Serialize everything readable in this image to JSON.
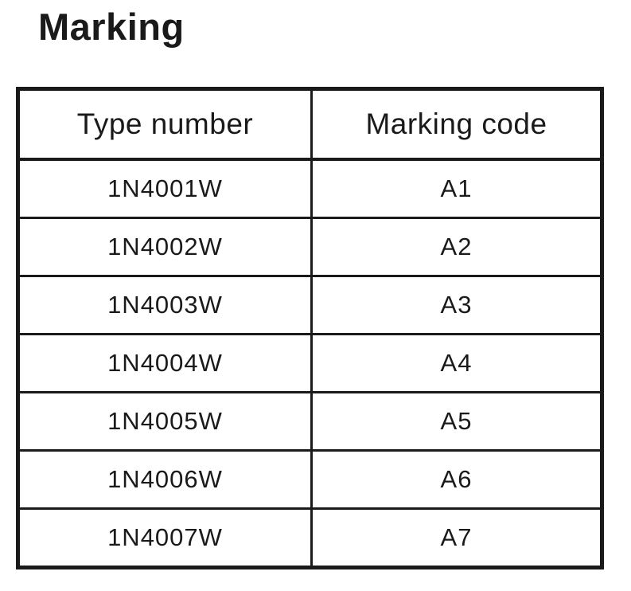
{
  "title": "Marking",
  "table": {
    "headers": [
      "Type number",
      "Marking code"
    ],
    "rows": [
      [
        "1N4001W",
        "A1"
      ],
      [
        "1N4002W",
        "A2"
      ],
      [
        "1N4003W",
        "A3"
      ],
      [
        "1N4004W",
        "A4"
      ],
      [
        "1N4005W",
        "A5"
      ],
      [
        "1N4006W",
        "A6"
      ],
      [
        "1N4007W",
        "A7"
      ]
    ]
  }
}
